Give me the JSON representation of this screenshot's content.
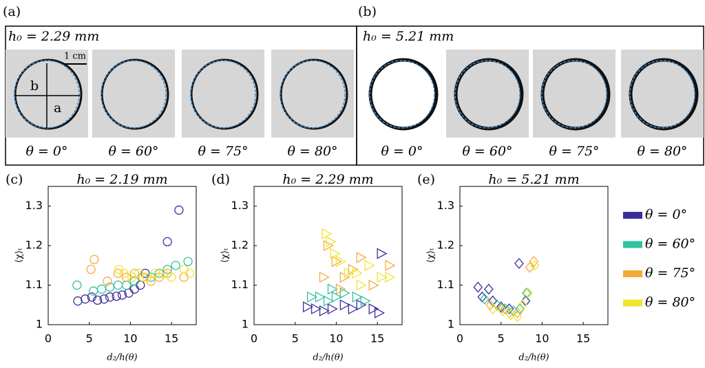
{
  "panels": [
    {
      "label": "(a)",
      "title": "h₀ = 2.29 mm",
      "scale_bar": "1 cm",
      "axis_labels": [
        "a",
        "b"
      ],
      "angles": [
        "θ = 0°",
        "θ = 60°",
        "θ = 75°",
        "θ = 80°"
      ]
    },
    {
      "label": "(b)",
      "title": "h₀ = 5.21 mm",
      "angles": [
        "θ = 0°",
        "θ = 60°",
        "θ = 75°",
        "θ = 80°"
      ]
    }
  ],
  "chart_data": [
    {
      "type": "scatter",
      "label": "(c)",
      "title": "h₀ = 2.19 mm",
      "xlabel": "d₂/h(θ)",
      "ylabel": "⟨χ⟩ₜ",
      "marker": "circle",
      "xlim": [
        0,
        18
      ],
      "ylim": [
        1,
        1.35
      ],
      "xticks": [
        0,
        5,
        10,
        15
      ],
      "yticks": [
        1,
        1.1,
        1.2,
        1.3
      ],
      "series": [
        {
          "name": "θ = 0°",
          "color": "#3b2f9c",
          "x": [
            3.6,
            4.5,
            5.3,
            6.0,
            6.8,
            7.5,
            8.3,
            9.0,
            9.8,
            10.5,
            11.2,
            11.8,
            14.5,
            15.9
          ],
          "y": [
            1.06,
            1.065,
            1.07,
            1.062,
            1.065,
            1.07,
            1.072,
            1.075,
            1.08,
            1.09,
            1.1,
            1.13,
            1.21,
            1.29
          ]
        },
        {
          "name": "θ = 60°",
          "color": "#2fc39f",
          "x": [
            3.5,
            5.5,
            6.5,
            7.5,
            8.5,
            9.5,
            10.5,
            11.5,
            12.5,
            13.5,
            14.5,
            15.5,
            17
          ],
          "y": [
            1.1,
            1.085,
            1.09,
            1.095,
            1.1,
            1.1,
            1.11,
            1.12,
            1.12,
            1.13,
            1.14,
            1.15,
            1.16
          ]
        },
        {
          "name": "θ = 75°",
          "color": "#f3aa3c",
          "x": [
            5.2,
            5.6,
            7.2,
            8.5,
            9.5,
            10.5,
            11.5,
            12.5,
            13.5,
            14.5,
            16.5
          ],
          "y": [
            1.14,
            1.165,
            1.11,
            1.13,
            1.12,
            1.13,
            1.12,
            1.11,
            1.12,
            1.13,
            1.12
          ]
        },
        {
          "name": "θ = 80°",
          "color": "#f0e432",
          "x": [
            8.6,
            9.2,
            10.2,
            11,
            12,
            13,
            14,
            15,
            16.5,
            17.2
          ],
          "y": [
            1.14,
            1.13,
            1.12,
            1.13,
            1.12,
            1.13,
            1.13,
            1.12,
            1.14,
            1.13
          ]
        }
      ]
    },
    {
      "type": "scatter",
      "label": "(d)",
      "title": "h₀ = 2.29 mm",
      "xlabel": "d₂/h(θ)",
      "ylabel": "⟨χ⟩ₜ",
      "marker": "triangle",
      "xlim": [
        0,
        18
      ],
      "ylim": [
        1,
        1.35
      ],
      "xticks": [
        0,
        5,
        10,
        15
      ],
      "yticks": [
        1,
        1.1,
        1.2,
        1.3
      ],
      "series": [
        {
          "color": "#3b2f9c",
          "x": [
            6.5,
            7.5,
            8.5,
            9.5,
            11,
            12,
            13,
            14.5,
            15.5,
            15.2
          ],
          "y": [
            1.045,
            1.04,
            1.035,
            1.04,
            1.05,
            1.04,
            1.05,
            1.04,
            1.18,
            1.03
          ]
        },
        {
          "color": "#2fc39f",
          "x": [
            7,
            8,
            9,
            10,
            11,
            12.5,
            13.5,
            9.5
          ],
          "y": [
            1.07,
            1.07,
            1.06,
            1.07,
            1.08,
            1.07,
            1.06,
            1.09
          ]
        },
        {
          "color": "#f3aa3c",
          "x": [
            9,
            10,
            11,
            12,
            13,
            8.5,
            14.5,
            16.5,
            10.5
          ],
          "y": [
            1.2,
            1.16,
            1.12,
            1.14,
            1.17,
            1.12,
            1.1,
            1.15,
            1.09
          ]
        },
        {
          "color": "#f0e432",
          "x": [
            8.8,
            9.3,
            9.8,
            10.5,
            11.5,
            12.5,
            14,
            15.5,
            16.5,
            13
          ],
          "y": [
            1.23,
            1.21,
            1.18,
            1.16,
            1.13,
            1.13,
            1.15,
            1.12,
            1.12,
            1.1
          ]
        }
      ]
    },
    {
      "type": "scatter",
      "label": "(e)",
      "title": "h₀ = 5.21 mm",
      "xlabel": "d₂/h(θ)",
      "ylabel": "⟨χ⟩ₜ",
      "marker": "diamond",
      "xlim": [
        0,
        18
      ],
      "ylim": [
        1,
        1.35
      ],
      "xticks": [
        0,
        5,
        10,
        15
      ],
      "yticks": [
        1,
        1.1,
        1.2,
        1.3
      ],
      "series": [
        {
          "color": "#3b2f9c",
          "x": [
            2.2,
            2.7,
            3.5,
            4,
            5,
            6,
            7.2,
            8
          ],
          "y": [
            1.095,
            1.07,
            1.09,
            1.06,
            1.045,
            1.04,
            1.155,
            1.06
          ]
        },
        {
          "color": "#2fc39f",
          "x": [
            3,
            4.5,
            5.5,
            6.5,
            7.3,
            8.1
          ],
          "y": [
            1.065,
            1.05,
            1.04,
            1.035,
            1.04,
            1.08
          ]
        },
        {
          "color": "#f3aa3c",
          "x": [
            3.7,
            5,
            6,
            7,
            8.5,
            9
          ],
          "y": [
            1.05,
            1.04,
            1.03,
            1.03,
            1.145,
            1.16
          ]
        },
        {
          "color": "#f0e432",
          "x": [
            4,
            5.2,
            6.2,
            7,
            8.3,
            9.1,
            7.6
          ],
          "y": [
            1.04,
            1.035,
            1.025,
            1.02,
            1.08,
            1.15,
            1.05
          ]
        }
      ]
    }
  ]
}
